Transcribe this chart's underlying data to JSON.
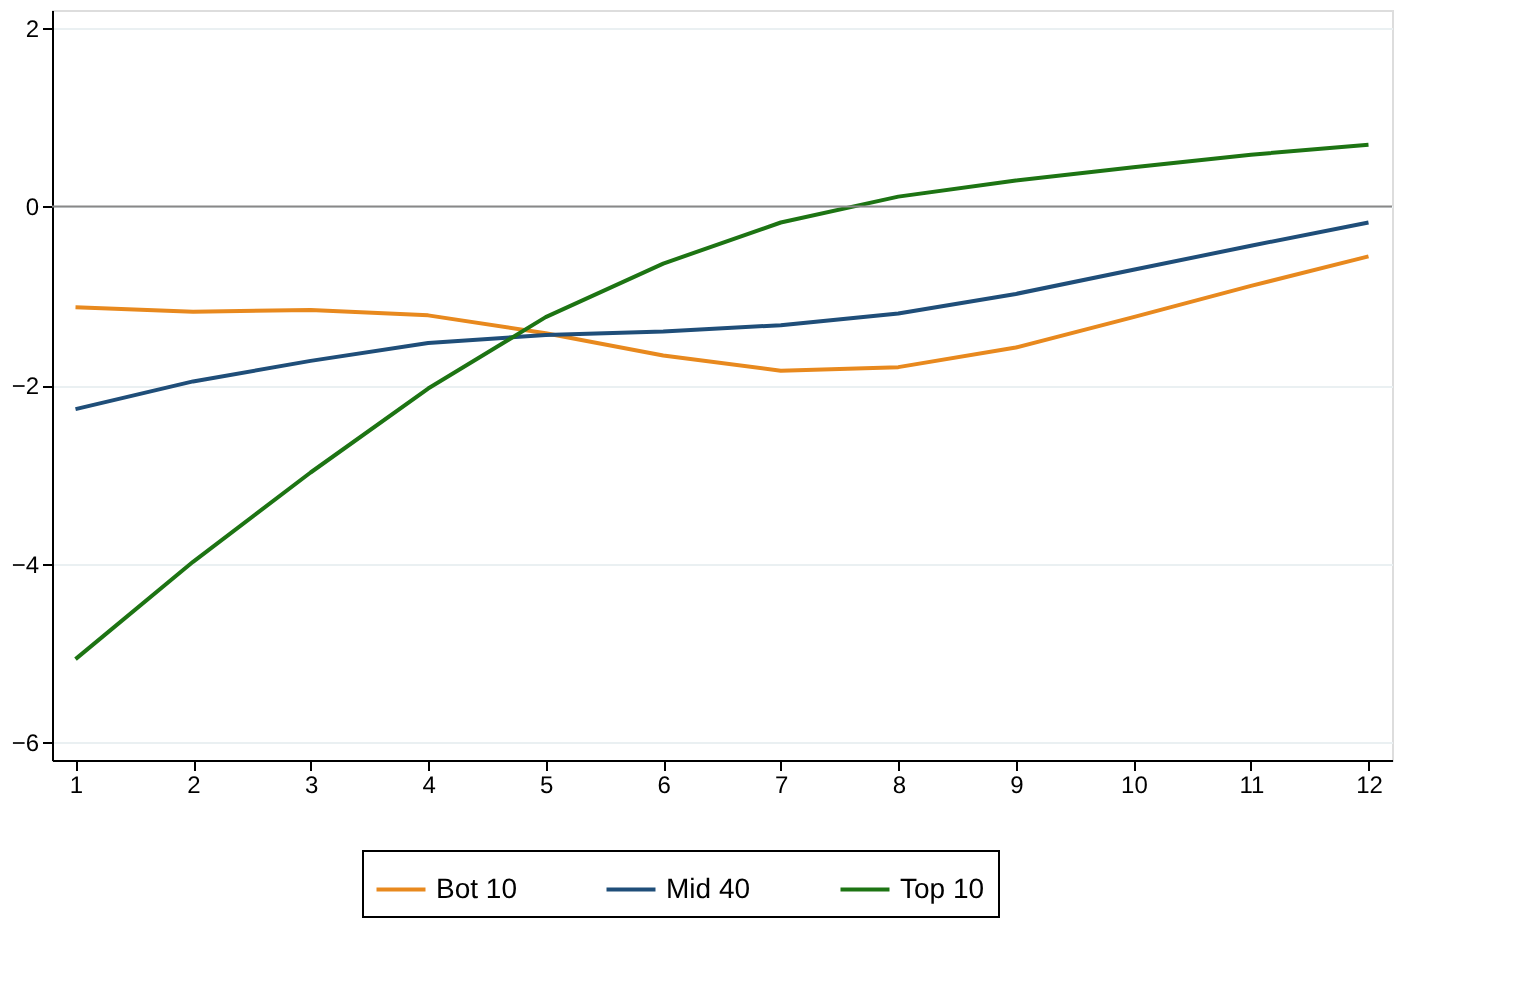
{
  "chart_data": {
    "type": "line",
    "x": [
      1,
      2,
      3,
      4,
      5,
      6,
      7,
      8,
      9,
      10,
      11,
      12
    ],
    "series": [
      {
        "name": "Bot 10",
        "color": "#e8891e",
        "values": [
          -1.13,
          -1.18,
          -1.16,
          -1.22,
          -1.42,
          -1.67,
          -1.84,
          -1.8,
          -1.58,
          -1.24,
          -0.89,
          -0.56
        ]
      },
      {
        "name": "Mid 40",
        "color": "#1f4e79",
        "values": [
          -2.27,
          -1.96,
          -1.73,
          -1.53,
          -1.44,
          -1.4,
          -1.33,
          -1.2,
          -0.98,
          -0.71,
          -0.44,
          -0.18
        ]
      },
      {
        "name": "Top 10",
        "color": "#1d7413",
        "values": [
          -5.07,
          -3.98,
          -2.98,
          -2.04,
          -1.24,
          -0.64,
          -0.18,
          0.11,
          0.29,
          0.44,
          0.58,
          0.69
        ]
      }
    ],
    "xlim": [
      0.8,
      12.2
    ],
    "xticks": [
      1,
      2,
      3,
      4,
      5,
      6,
      7,
      8,
      9,
      10,
      11,
      12
    ],
    "ylim": [
      -6.2,
      2.2
    ],
    "yticks": [
      -6,
      -4,
      -2,
      0,
      2
    ],
    "ref_lines": [
      {
        "axis": "y",
        "value": 0,
        "color": "#888888"
      }
    ],
    "grid": "y",
    "legend": "bottom",
    "marker": "none",
    "line_style": "solid"
  }
}
